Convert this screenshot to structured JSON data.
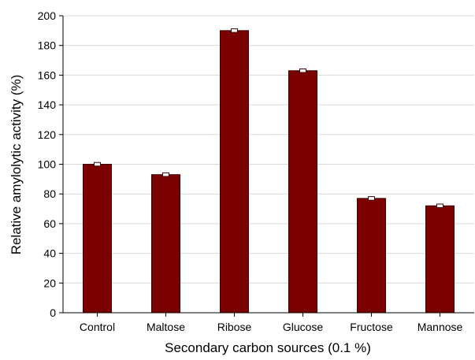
{
  "chart_data": {
    "type": "bar",
    "categories": [
      "Control",
      "Maltose",
      "Ribose",
      "Glucose",
      "Fructose",
      "Mannose"
    ],
    "series": [
      {
        "values": [
          100,
          93,
          190,
          163,
          77,
          72
        ],
        "errors": [
          1.2,
          1.2,
          1.2,
          1.2,
          1.2,
          1.2
        ]
      }
    ],
    "title": "",
    "xlabel": "Secondary carbon sources (0.1 %)",
    "ylabel": "Relative amylolytic activity (%)",
    "ylim": [
      0,
      200
    ],
    "yticks": [
      0,
      20,
      40,
      60,
      80,
      100,
      120,
      140,
      160,
      180,
      200
    ],
    "grid": "horizontal",
    "legend": "none",
    "bar_color": "#7b0000",
    "bar_edge_color": "#3d0000",
    "grid_color": "#d9d9d9"
  }
}
